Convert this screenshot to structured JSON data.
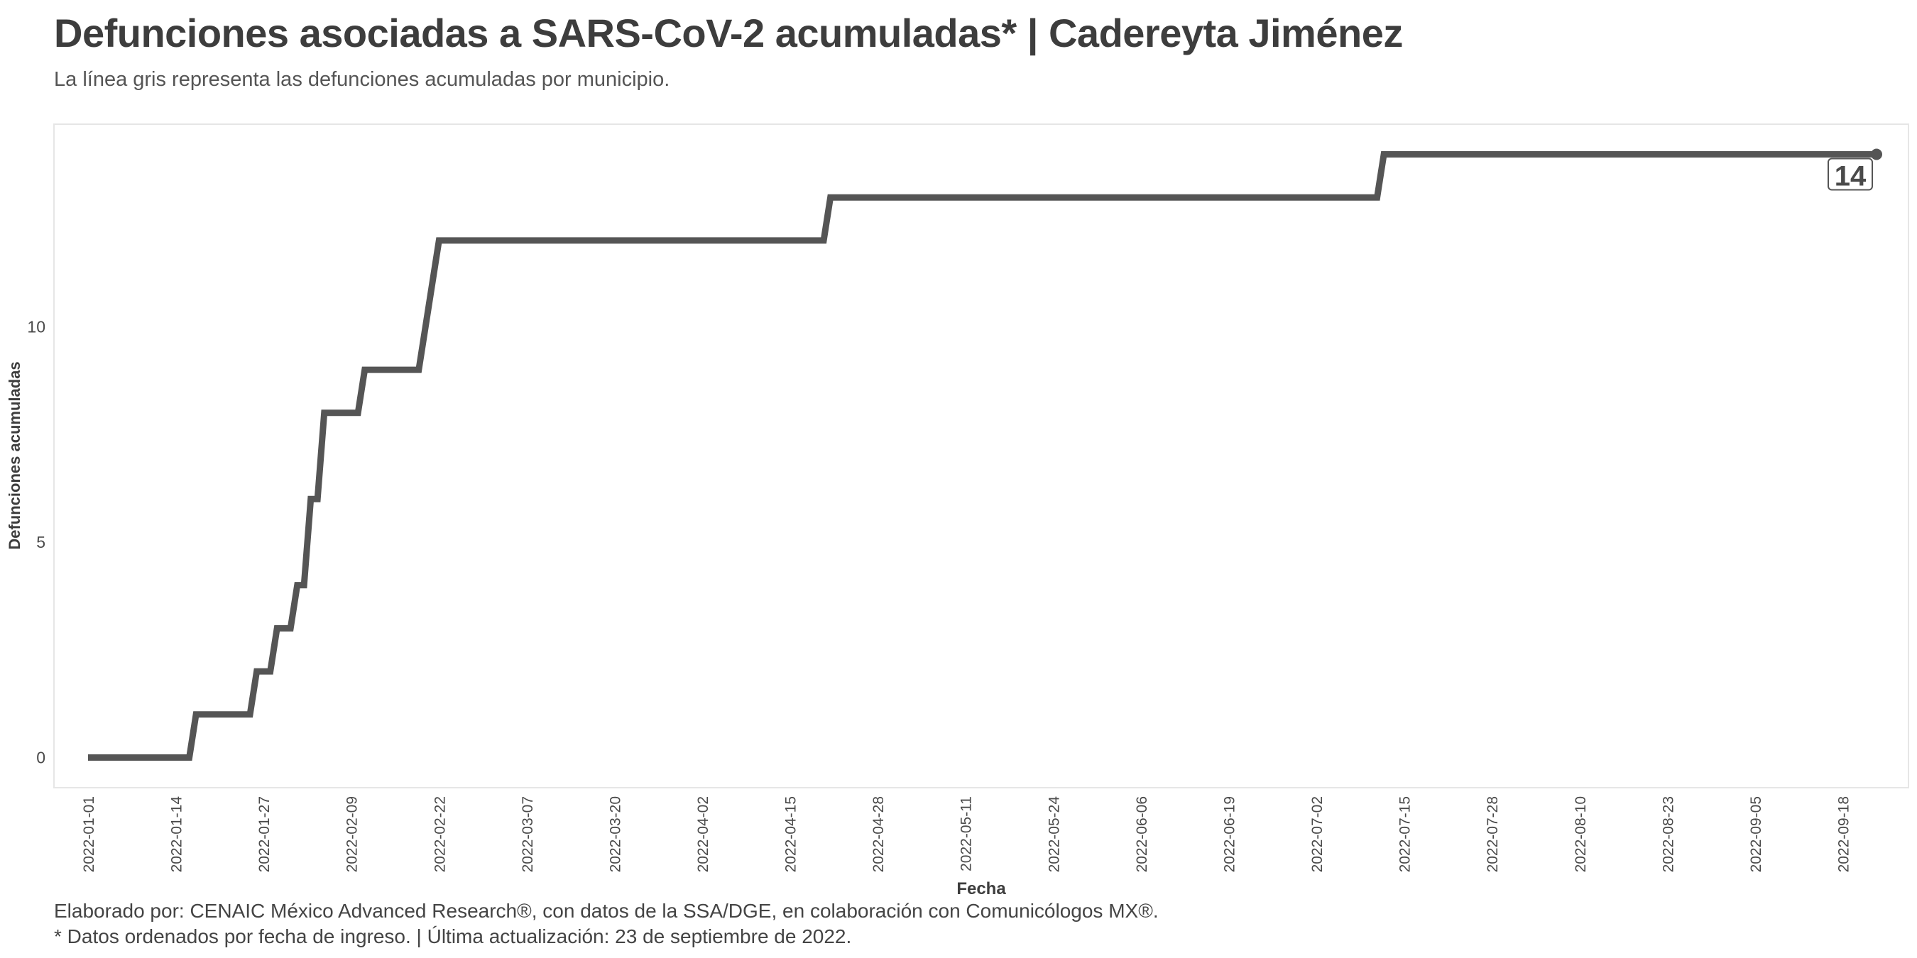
{
  "header": {
    "title": "Defunciones asociadas a SARS-CoV-2 acumuladas* | Cadereyta Jiménez",
    "subtitle": "La línea gris representa las defunciones acumuladas por municipio."
  },
  "footer": {
    "caption_line1": "Elaborado por: CENAIC México Advanced Research®, con datos de la SSA/DGE, en colaboración con Comunicólogos MX®.",
    "caption_line2": "* Datos ordenados por fecha de ingreso. | Última actualización: 23 de septiembre de 2022."
  },
  "chart_data": {
    "type": "line",
    "step": true,
    "xlabel": "Fecha",
    "ylabel": "Defunciones acumuladas",
    "xlim": [
      "2022-01-01",
      "2022-09-23"
    ],
    "ylim": [
      -0.7,
      14.7
    ],
    "x_ticks": [
      "2022-01-01",
      "2022-01-14",
      "2022-01-27",
      "2022-02-09",
      "2022-02-22",
      "2022-03-07",
      "2022-03-20",
      "2022-04-02",
      "2022-04-15",
      "2022-04-28",
      "2022-05-11",
      "2022-05-24",
      "2022-06-06",
      "2022-06-19",
      "2022-07-02",
      "2022-07-15",
      "2022-07-28",
      "2022-08-10",
      "2022-08-23",
      "2022-09-05",
      "2022-09-18"
    ],
    "y_ticks": [
      0,
      5,
      10
    ],
    "grid": false,
    "line_color": "#555555",
    "series": [
      {
        "points": [
          {
            "x": "2022-01-01",
            "y": 0
          },
          {
            "x": "2022-01-16",
            "y": 0
          },
          {
            "x": "2022-01-17",
            "y": 1
          },
          {
            "x": "2022-01-25",
            "y": 1
          },
          {
            "x": "2022-01-26",
            "y": 2
          },
          {
            "x": "2022-01-28",
            "y": 2
          },
          {
            "x": "2022-01-29",
            "y": 3
          },
          {
            "x": "2022-01-31",
            "y": 3
          },
          {
            "x": "2022-02-01",
            "y": 4
          },
          {
            "x": "2022-02-02",
            "y": 4
          },
          {
            "x": "2022-02-03",
            "y": 6
          },
          {
            "x": "2022-02-04",
            "y": 6
          },
          {
            "x": "2022-02-05",
            "y": 8
          },
          {
            "x": "2022-02-10",
            "y": 8
          },
          {
            "x": "2022-02-11",
            "y": 9
          },
          {
            "x": "2022-02-19",
            "y": 9
          },
          {
            "x": "2022-02-22",
            "y": 12
          },
          {
            "x": "2022-04-20",
            "y": 12
          },
          {
            "x": "2022-04-21",
            "y": 13
          },
          {
            "x": "2022-07-11",
            "y": 13
          },
          {
            "x": "2022-07-12",
            "y": 14
          },
          {
            "x": "2022-09-23",
            "y": 14
          }
        ]
      }
    ],
    "annotation": {
      "x": "2022-09-23",
      "y": 14,
      "label": "14"
    }
  }
}
